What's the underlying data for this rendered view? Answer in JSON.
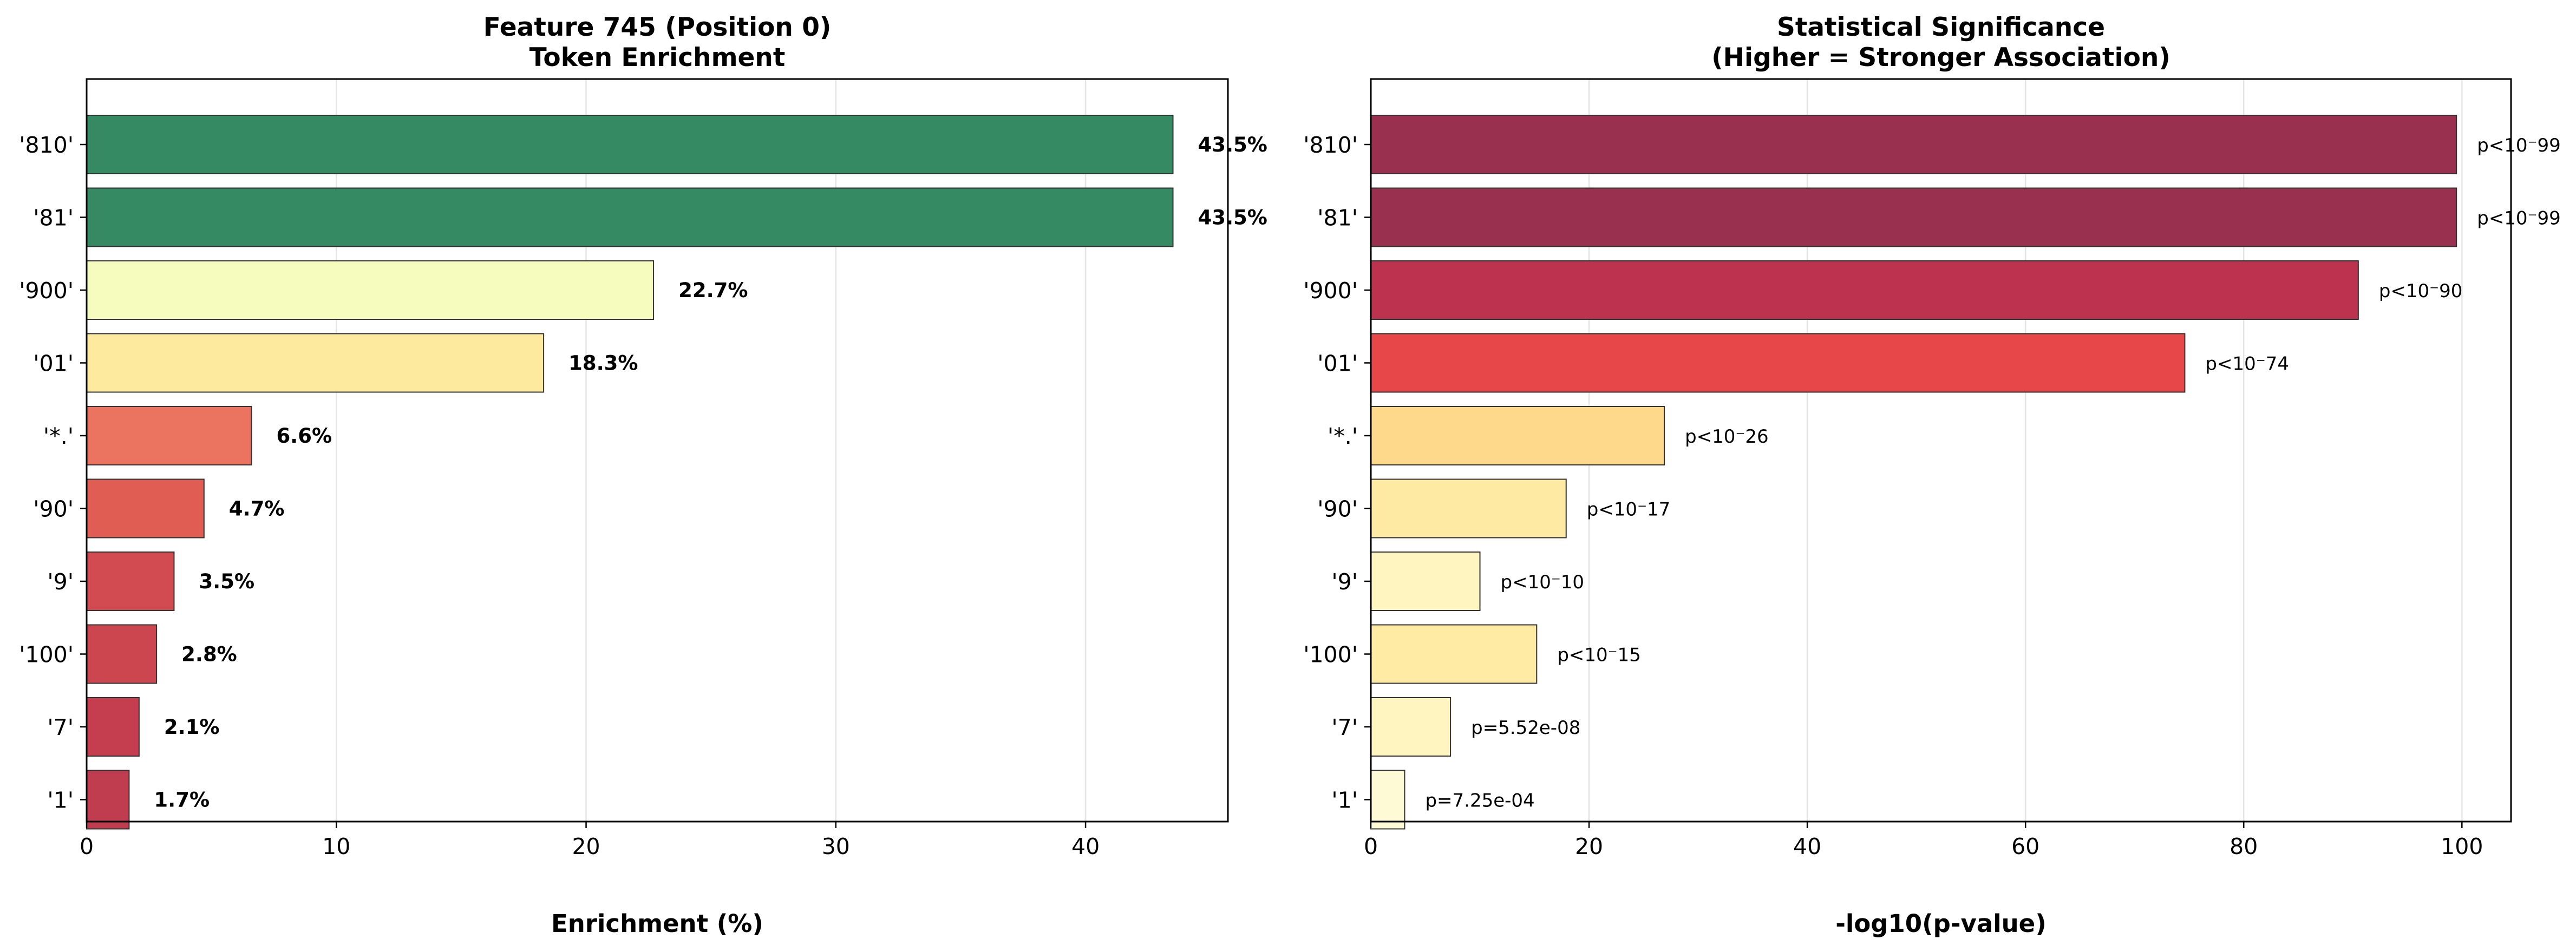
{
  "chart_data": [
    {
      "type": "bar",
      "orientation": "horizontal",
      "title": "Feature 745 (Position 0)",
      "subtitle": "Token Enrichment",
      "xlabel": "Enrichment (%)",
      "ylabel": "",
      "xlim": [
        0,
        45.7
      ],
      "xticks": [
        0,
        10,
        20,
        30,
        40
      ],
      "grid": "vertical",
      "categories": [
        "'810'",
        "'81'",
        "'900'",
        "'01'",
        "'*.'",
        "'90'",
        "'9'",
        "'100'",
        "'7'",
        "'1'"
      ],
      "values": [
        43.5,
        43.5,
        22.7,
        18.3,
        6.6,
        4.7,
        3.5,
        2.8,
        2.1,
        1.7
      ],
      "labels": [
        "43.5%",
        "43.5%",
        "22.7%",
        "18.3%",
        "6.6%",
        "4.7%",
        "3.5%",
        "2.8%",
        "2.1%",
        "1.7%"
      ],
      "colors": [
        "#358a63",
        "#358a63",
        "#f6fbbe",
        "#feea9f",
        "#eb7461",
        "#e05d53",
        "#d24b50",
        "#cb464f",
        "#c43e4f",
        "#c03c4f"
      ]
    },
    {
      "type": "bar",
      "orientation": "horizontal",
      "title": "Statistical Significance",
      "subtitle": "(Higher = Stronger Association)",
      "xlabel": "-log10(p-value)",
      "ylabel": "",
      "xlim": [
        0,
        104.5
      ],
      "xticks": [
        0,
        20,
        40,
        60,
        80,
        100
      ],
      "grid": "vertical",
      "categories": [
        "'810'",
        "'81'",
        "'900'",
        "'01'",
        "'*.'",
        "'90'",
        "'9'",
        "'100'",
        "'7'",
        "'1'"
      ],
      "values": [
        99.5,
        99.5,
        90.5,
        74.6,
        26.9,
        17.9,
        10.0,
        15.2,
        7.3,
        3.1
      ],
      "labels": [
        "p<10⁻99",
        "p<10⁻99",
        "p<10⁻90",
        "p<10⁻74",
        "p<10⁻26",
        "p<10⁻17",
        "p<10⁻10",
        "p<10⁻15",
        "p=5.52e-08",
        "p=7.25e-04"
      ],
      "colors": [
        "#99304f",
        "#99304f",
        "#bc324f",
        "#e8474a",
        "#fed98b",
        "#ffeaa3",
        "#fff5c0",
        "#ffeba4",
        "#fff5c1",
        "#fffad6"
      ]
    }
  ]
}
